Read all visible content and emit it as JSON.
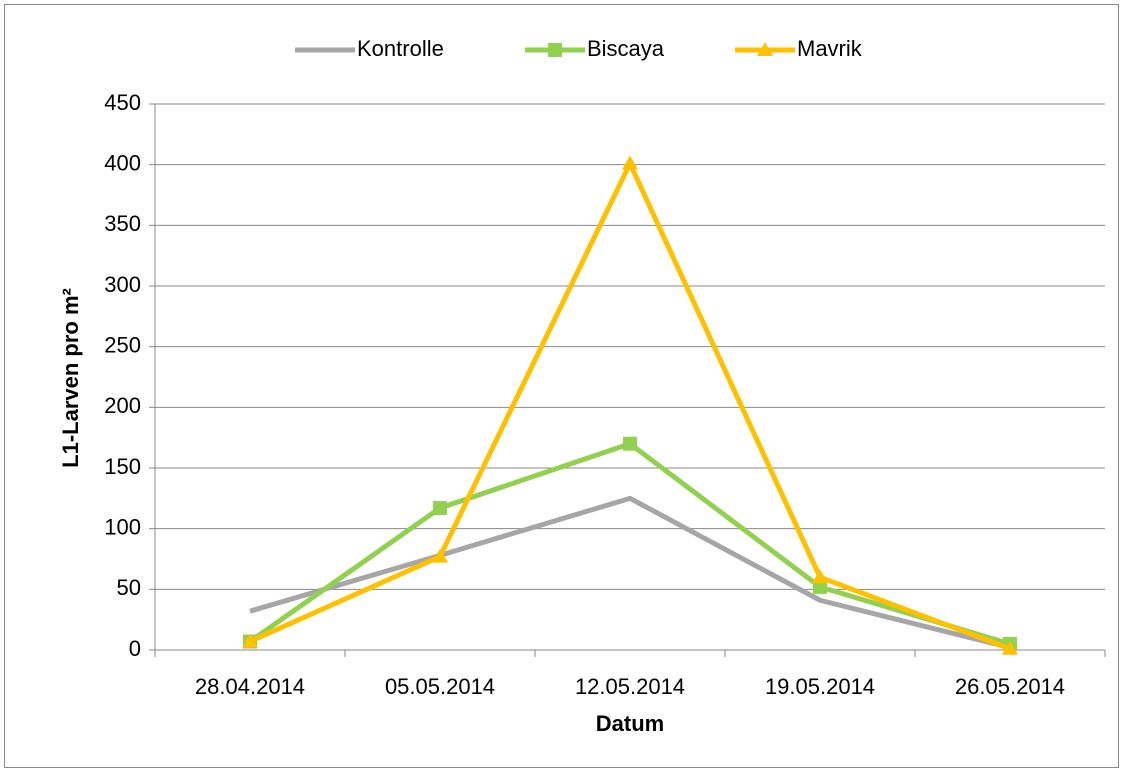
{
  "chart_data": {
    "type": "line",
    "categories": [
      "28.04.2014",
      "05.05.2014",
      "12.05.2014",
      "19.05.2014",
      "26.05.2014"
    ],
    "series": [
      {
        "name": "Kontrolle",
        "color": "#a6a6a6",
        "marker": "none",
        "values": [
          32,
          78,
          125,
          41,
          2
        ]
      },
      {
        "name": "Biscaya",
        "color": "#92d050",
        "marker": "square",
        "values": [
          7,
          117,
          170,
          52,
          5
        ]
      },
      {
        "name": "Mavrik",
        "color": "#ffc000",
        "marker": "triangle",
        "values": [
          7,
          77,
          401,
          60,
          1
        ]
      }
    ],
    "xlabel": "Datum",
    "ylabel": "L1-Larven pro m²",
    "ylim": [
      0,
      450
    ],
    "yticks": [
      0,
      50,
      100,
      150,
      200,
      250,
      300,
      350,
      400,
      450
    ],
    "grid": true,
    "legend": "top"
  }
}
